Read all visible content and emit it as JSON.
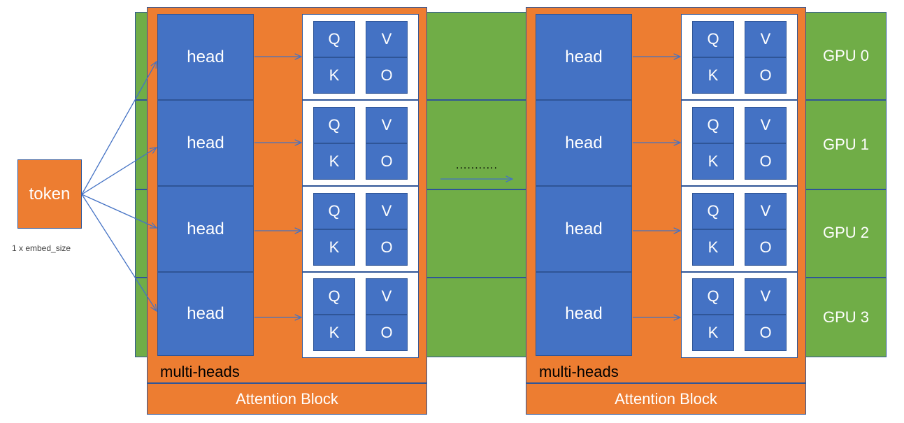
{
  "token": {
    "label": "token",
    "size_label": "1 x embed_size"
  },
  "gpus": [
    {
      "label": "GPU 0"
    },
    {
      "label": "GPU 1"
    },
    {
      "label": "GPU 2"
    },
    {
      "label": "GPU 3"
    }
  ],
  "blocks": [
    {
      "multi_label": "multi-heads",
      "attention_label": "Attention Block",
      "heads": [
        {
          "label": "head",
          "q": "Q",
          "k": "K",
          "v": "V",
          "o": "O"
        },
        {
          "label": "head",
          "q": "Q",
          "k": "K",
          "v": "V",
          "o": "O"
        },
        {
          "label": "head",
          "q": "Q",
          "k": "K",
          "v": "V",
          "o": "O"
        },
        {
          "label": "head",
          "q": "Q",
          "k": "K",
          "v": "V",
          "o": "O"
        }
      ]
    },
    {
      "multi_label": "multi-heads",
      "attention_label": "Attention Block",
      "heads": [
        {
          "label": "head",
          "q": "Q",
          "k": "K",
          "v": "V",
          "o": "O"
        },
        {
          "label": "head",
          "q": "Q",
          "k": "K",
          "v": "V",
          "o": "O"
        },
        {
          "label": "head",
          "q": "Q",
          "k": "K",
          "v": "V",
          "o": "O"
        },
        {
          "label": "head",
          "q": "Q",
          "k": "K",
          "v": "V",
          "o": "O"
        }
      ]
    }
  ],
  "ellipsis": "...........",
  "colors": {
    "green": "#70ad47",
    "orange": "#ed7d31",
    "blue": "#4472c4",
    "line": "#4472c4"
  }
}
